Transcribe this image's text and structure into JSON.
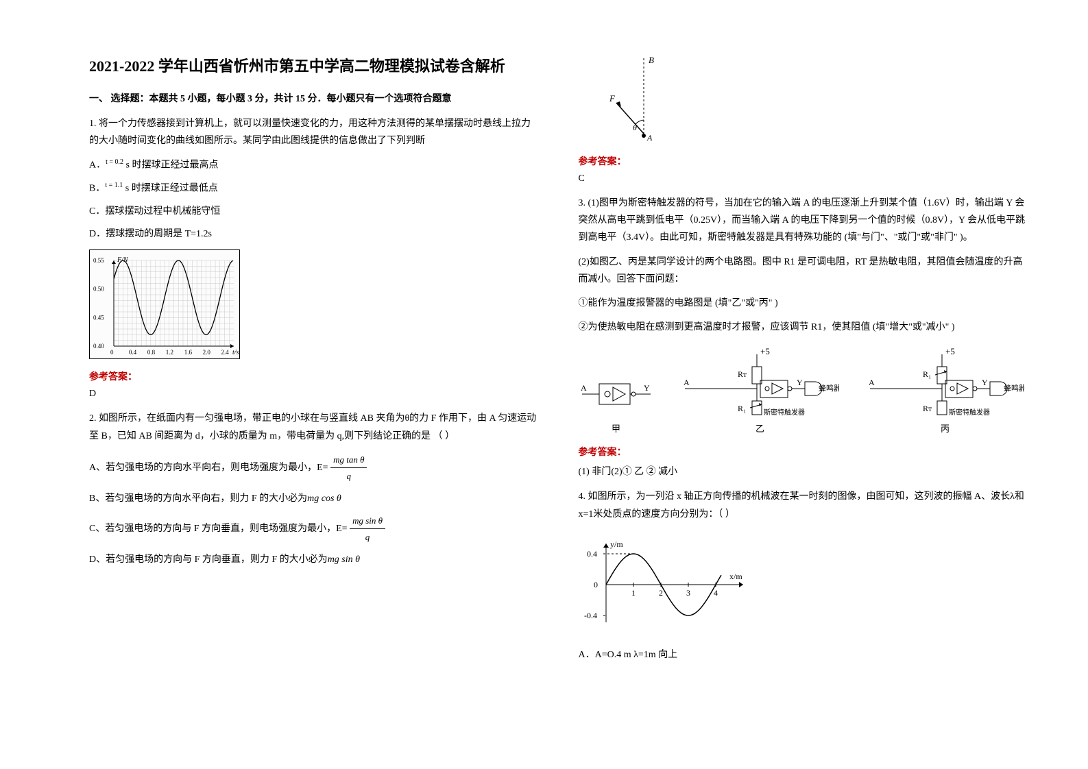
{
  "title": "2021-2022 学年山西省忻州市第五中学高二物理模拟试卷含解析",
  "section1": "一、 选择题：本题共 5 小题，每小题 3 分，共计 15 分．每小题只有一个选项符合题意",
  "q1": {
    "stem": "1. 将一个力传感器接到计算机上，就可以测量快速变化的力，用这种方法测得的某单摆摆动时悬线上拉力的大小随时间变化的曲线如图所示。某同学由此图线提供的信息做出了下列判断",
    "A_pre": "A．",
    "A_sup": "t = 0.2",
    "A_post": " s 时摆球正经过最高点",
    "B_pre": "B．",
    "B_sup": "t = 1.1",
    "B_post": " s 时摆球正经过最低点",
    "C": "C．摆球摆动过程中机械能守恒",
    "D": "D．摆球摆动的周期是 T=1.2s",
    "graph": {
      "yaxis_label": "F/N",
      "xaxis_label": "t/s",
      "yticks": [
        "0.55",
        "0.50",
        "0.45",
        "0.40"
      ],
      "xticks": [
        "0",
        "0.4",
        "0.8",
        "1.2",
        "1.6",
        "2.0",
        "2.4"
      ],
      "y_min": 0.4,
      "y_max": 0.55,
      "x_min": 0,
      "x_max": 2.6,
      "peaks_x": [
        0.2,
        0.8,
        1.4,
        2.0
      ],
      "peak_y": 0.55,
      "troughs_x": [
        0.5,
        1.1,
        1.7,
        2.3
      ],
      "trough_y": 0.42,
      "grid_color": "#c8c8c8",
      "line_color": "#000000"
    },
    "answer": "D"
  },
  "q2": {
    "stem": "2. 如图所示，在纸面内有一匀强电场，带正电的小球在与竖直线 AB 夹角为θ的力 F 作用下，由 A 匀速运动至 B，已知 AB 间距离为 d，小球的质量为 m，带电荷量为 q,则下列结论正确的是        （  ）",
    "A_pre": "A、若匀强电场的方向水平向右，则电场强度为最小，E=  ",
    "A_frac_num": "mg tan θ",
    "A_frac_den": "q",
    "B_pre": "B、若匀强电场的方向水平向右，则力 F 的大小必为",
    "B_expr": "mg cos θ",
    "C_pre": "C、若匀强电场的方向与 F 方向垂直，则电场强度为最小，E=  ",
    "C_frac_num": "mg sin θ",
    "C_frac_den": "q",
    "D_pre": "D、若匀强电场的方向与 F 方向垂直，则力 F 的大小必为",
    "D_expr": "mg sin θ",
    "fig": {
      "B": "B",
      "F": "F",
      "theta": "θ",
      "A": "A"
    },
    "answer": "C"
  },
  "q3": {
    "stem1": "3. (1)图甲为斯密特触发器的符号，当加在它的输入端 A 的电压逐渐上升到某个值（1.6V）时，输出端 Y 会突然从高电平跳到低电平（0.25V），而当输入端 A 的电压下降到另一个值的时候（0.8V），Y 会从低电平跳到高电平（3.4V）。由此可知，斯密特触发器是具有特殊功能的    (填\"与门\"、\"或门\"或\"非门\" )。",
    "stem2": "(2)如图乙、丙是某同学设计的两个电路图。图中 R1 是可调电阻，RT 是热敏电阻，其阻值会随温度的升高而减小。回答下面问题：",
    "sub1": "①能作为温度报警器的电路图是    (填\"乙\"或\"丙\" )",
    "sub2": "②为使热敏电阻在感测到更高温度时才报警，应该调节 R1，使其阻值   (填\"增大\"或\"减小\" )",
    "labels": {
      "jia": "甲",
      "yi": "乙",
      "bing": "丙",
      "A": "A",
      "Y": "Y",
      "R1": "R₁",
      "RT": "Rᴛ",
      "plus5": "+5",
      "buzzer": "蜂鸣器",
      "schmitt": "斯密特触发器"
    },
    "answer": "(1) 非门(2)① 乙  ② 减小"
  },
  "q4": {
    "stem": "4. 如图所示，为一列沿 x 轴正方向传播的机械波在某一时刻的图像，由图可知，这列波的振幅 A、波长λ和 x=1米处质点的速度方向分别为：（     ）",
    "graph": {
      "yaxis": "y/m",
      "xaxis": "x/m",
      "yticks": [
        "0.4",
        "0",
        "-0.4"
      ],
      "xticks": [
        "1",
        "2",
        "3",
        "4"
      ],
      "amplitude": 0.4,
      "wavelength": 4,
      "line_color": "#000000"
    },
    "A": "A．A=O.4 m  λ=1m    向上"
  },
  "answer_label": "参考答案：",
  "colors": {
    "answer": "#c00000",
    "text": "#000000",
    "grid": "#c8c8c8"
  }
}
